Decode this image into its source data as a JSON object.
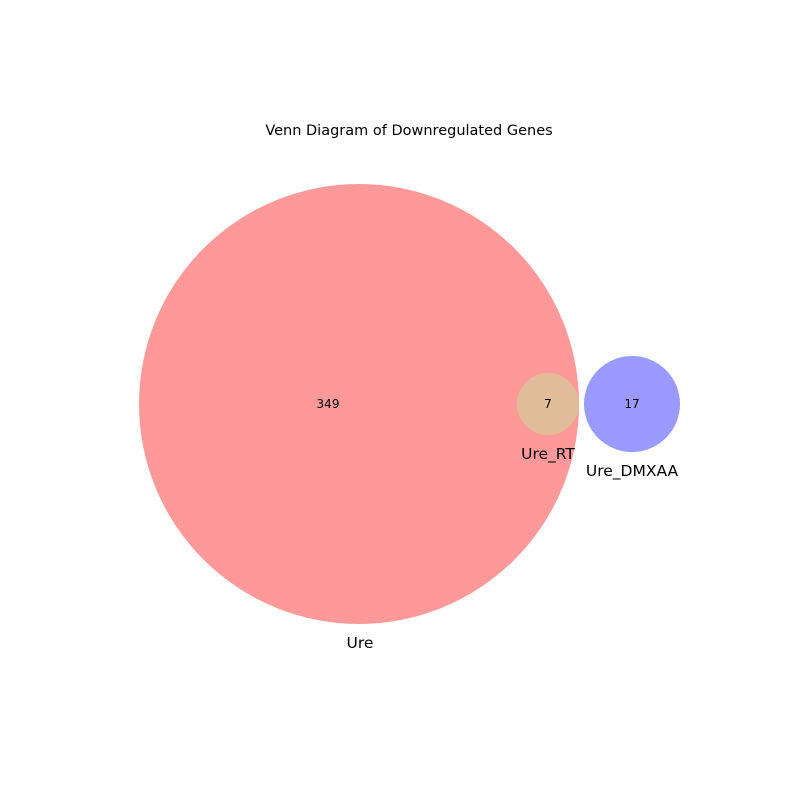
{
  "title": "Venn Diagram of Downregulated Genes",
  "sets": [
    {
      "key": "ure",
      "label": "Ure",
      "color": "#ff9999"
    },
    {
      "key": "ure_rt",
      "label": "Ure_RT",
      "color": "#e0bc98"
    },
    {
      "key": "ure_dmxaa",
      "label": "Ure_DMXAA",
      "color": "#9999ff"
    }
  ],
  "regions": [
    {
      "set": "ure",
      "count": "349"
    },
    {
      "set": "ure_rt",
      "count": "7"
    },
    {
      "set": "ure_dmxaa",
      "count": "17"
    }
  ]
}
